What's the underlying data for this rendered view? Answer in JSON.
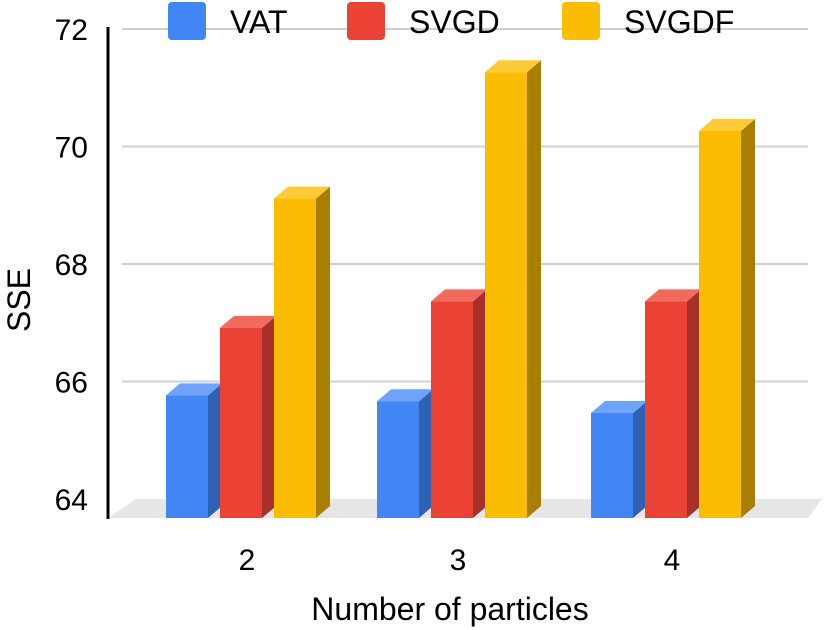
{
  "chart_data": {
    "type": "bar",
    "style": "3d",
    "title": "",
    "xlabel": "Number of particles",
    "ylabel": "SSE",
    "categories": [
      "2",
      "3",
      "4"
    ],
    "series": [
      {
        "name": "VAT",
        "values": [
          65.9,
          65.8,
          65.6
        ],
        "color": "#4285F4",
        "side_color": "#2F62B5",
        "top_color": "#6FA3F7"
      },
      {
        "name": "SVGD",
        "values": [
          67.05,
          67.5,
          67.5
        ],
        "color": "#EA4335",
        "side_color": "#A8302A",
        "top_color": "#F06A5E"
      },
      {
        "name": "SVGDF",
        "values": [
          69.25,
          71.4,
          70.4
        ],
        "color": "#FBBC04",
        "side_color": "#A87E03",
        "top_color": "#FCCB3A"
      }
    ],
    "ylim": [
      64,
      72
    ],
    "yticks": [
      "64",
      "66",
      "68",
      "70",
      "72"
    ],
    "grid": true,
    "legend_position": "top"
  }
}
